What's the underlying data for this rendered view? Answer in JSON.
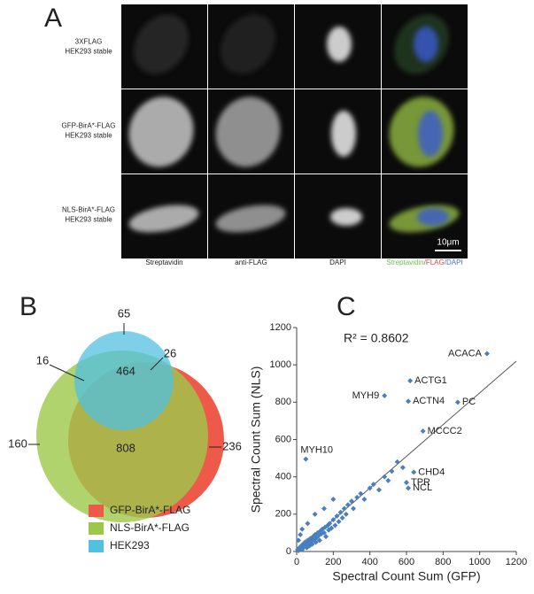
{
  "panel_a": {
    "label": "A",
    "rows": [
      [
        "3XFLAG",
        "HEK293 stable"
      ],
      [
        "GFP-BirA*-FLAG",
        "HEK293 stable"
      ],
      [
        "NLS-BirA*-FLAG",
        "HEK293 stable"
      ]
    ],
    "columns": [
      "Streptavidin",
      "anti-FLAG",
      "DAPI"
    ],
    "merge_label": [
      {
        "text": "Streptavidin",
        "color": "#6cc24a"
      },
      {
        "text": "/FLAG",
        "color": "#e8403a"
      },
      {
        "text": "/DAPI",
        "color": "#4a6fd0"
      }
    ],
    "scale_bar": "10μm"
  },
  "panel_b": {
    "label": "B",
    "counts": {
      "hek293_only": 65,
      "nls_hek293": 16,
      "gfp_hek293": 26,
      "all_three": 464,
      "nls_gfp": 808,
      "nls_only": 160,
      "gfp_only": 236
    },
    "legend": [
      {
        "name": "GFP-BirA*-FLAG",
        "color": "#ee5a4a"
      },
      {
        "name": "NLS-BirA*-FLAG",
        "color": "#9cc84a"
      },
      {
        "name": "HEK293",
        "color": "#52c0e0"
      }
    ]
  },
  "chart_data": {
    "type": "scatter",
    "panel_label": "C",
    "annotation": "R² = 0.8602",
    "x_label": "Spectral Count Sum (GFP)",
    "y_label": "Spectral Count Sum (NLS)",
    "color": "#4a7fc1",
    "x": [
      5,
      10,
      15,
      20,
      25,
      30,
      35,
      40,
      45,
      50,
      55,
      60,
      65,
      70,
      75,
      80,
      85,
      90,
      95,
      100,
      105,
      110,
      115,
      120,
      125,
      130,
      135,
      140,
      150,
      155,
      160,
      170,
      175,
      180,
      190,
      200,
      210,
      220,
      230,
      240,
      250,
      260,
      270,
      280,
      300,
      310,
      330,
      350,
      370,
      400,
      420,
      450,
      480,
      500,
      520,
      550,
      580,
      30,
      60,
      100,
      150,
      200,
      10,
      20,
      50,
      480,
      620,
      610,
      880,
      1040,
      690,
      640,
      600,
      610
    ],
    "y": [
      10,
      5,
      20,
      15,
      30,
      10,
      40,
      25,
      50,
      35,
      20,
      60,
      45,
      30,
      70,
      55,
      40,
      80,
      65,
      90,
      50,
      75,
      100,
      85,
      60,
      110,
      95,
      120,
      100,
      130,
      80,
      140,
      115,
      150,
      125,
      170,
      140,
      190,
      160,
      210,
      180,
      230,
      200,
      250,
      270,
      230,
      290,
      310,
      280,
      340,
      360,
      330,
      400,
      380,
      430,
      480,
      450,
      120,
      150,
      200,
      230,
      280,
      60,
      90,
      495,
      835,
      915,
      805,
      800,
      1060,
      645,
      425,
      370,
      340
    ],
    "point_labels": [
      null,
      null,
      null,
      null,
      null,
      null,
      null,
      null,
      null,
      null,
      null,
      null,
      null,
      null,
      null,
      null,
      null,
      null,
      null,
      null,
      null,
      null,
      null,
      null,
      null,
      null,
      null,
      null,
      null,
      null,
      null,
      null,
      null,
      null,
      null,
      null,
      null,
      null,
      null,
      null,
      null,
      null,
      null,
      null,
      null,
      null,
      null,
      null,
      null,
      null,
      null,
      null,
      null,
      null,
      null,
      null,
      null,
      null,
      null,
      null,
      null,
      null,
      null,
      null,
      "MYH10",
      "MYH9",
      "ACTG1",
      "ACTN4",
      "PC",
      "ACACA",
      "MCCC2",
      "CHD4",
      "TPR",
      "NCL"
    ],
    "trend_line": {
      "x": [
        0,
        1200
      ],
      "y": [
        0,
        1020
      ]
    },
    "xlim": [
      0,
      1200
    ],
    "ylim": [
      0,
      1200
    ],
    "xticks": [
      0,
      200,
      400,
      600,
      800,
      1000,
      1200
    ],
    "yticks": [
      0,
      200,
      400,
      600,
      800,
      1000,
      1200
    ]
  }
}
